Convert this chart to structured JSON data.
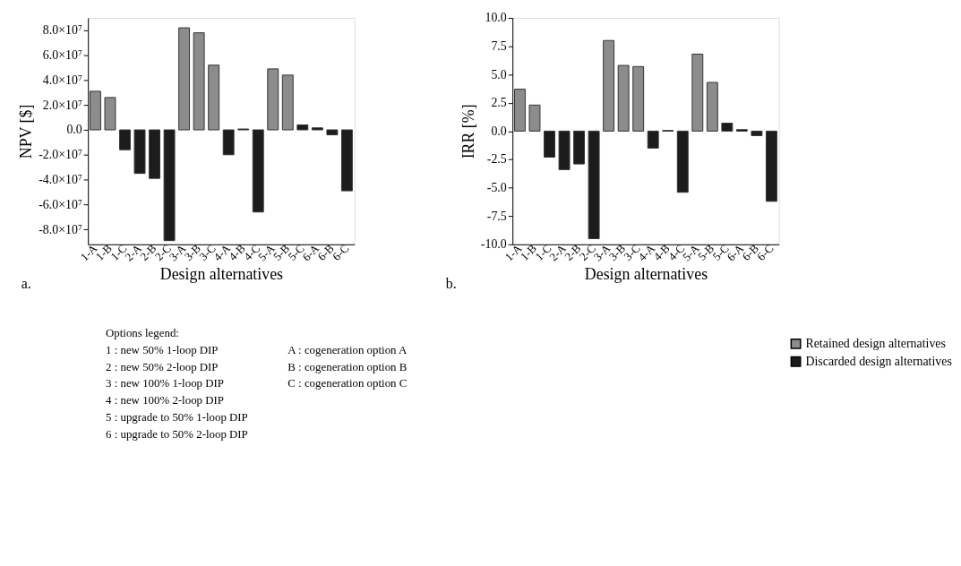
{
  "chart_data": [
    {
      "type": "bar",
      "xlabel": "Design alternatives",
      "ylabel": "NPV [$]",
      "categories": [
        "1-A",
        "1-B",
        "1-C",
        "2-A",
        "2-B",
        "2-C",
        "3-A",
        "3-B",
        "3-C",
        "4-A",
        "4-B",
        "4-C",
        "5-A",
        "5-B",
        "5-C",
        "6-A",
        "6-B",
        "6-C"
      ],
      "series": [
        {
          "name": "Retained design alternatives",
          "color": "#8c8c8c",
          "values": [
            31000000,
            26000000,
            null,
            null,
            null,
            null,
            82000000,
            78000000,
            52000000,
            null,
            null,
            null,
            49000000,
            44000000,
            null,
            null,
            null,
            null
          ]
        },
        {
          "name": "Discarded design alternatives",
          "color": "#1c1c1c",
          "values": [
            null,
            null,
            -16000000,
            -35000000,
            -39000000,
            -89000000,
            null,
            null,
            null,
            -20000000,
            700000,
            -66000000,
            null,
            null,
            4000000,
            1600000,
            -4000000,
            -49000000
          ]
        }
      ],
      "ylim": [
        -92000000,
        90000000
      ],
      "legend": "bottom right",
      "yticks": [
        {
          "value": -80000000,
          "label": "-8.0×10⁷"
        },
        {
          "value": -60000000,
          "label": "-6.0×10⁷"
        },
        {
          "value": -40000000,
          "label": "-4.0×10⁷"
        },
        {
          "value": -20000000,
          "label": "-2.0×10⁷"
        },
        {
          "value": 0,
          "label": "0.0"
        },
        {
          "value": 20000000,
          "label": "2.0×10⁷"
        },
        {
          "value": 40000000,
          "label": "4.0×10⁷"
        },
        {
          "value": 60000000,
          "label": "6.0×10⁷"
        },
        {
          "value": 80000000,
          "label": "8.0×10⁷"
        }
      ],
      "annotations": [
        "a.",
        "Options legend:",
        "1 : new 50% 1-loop DIP",
        "2 : new 50% 2-loop DIP",
        "3 : new 100% 1-loop DIP",
        "4 : new 100% 2-loop DIP",
        "5 : upgrade to 50% 1-loop DIP",
        "6 : upgrade to 50% 2-loop DIP",
        "A : cogeneration option A",
        "B : cogeneration option B",
        "C : cogeneration option C"
      ]
    },
    {
      "type": "bar",
      "xlabel": "Design alternatives",
      "ylabel": "IRR [%]",
      "categories": [
        "1-A",
        "1-B",
        "1-C",
        "2-A",
        "2-B",
        "2-C",
        "3-A",
        "3-B",
        "3-C",
        "4-A",
        "4-B",
        "4-C",
        "5-A",
        "5-B",
        "5-C",
        "6-A",
        "6-B",
        "6-C"
      ],
      "series": [
        {
          "color": "#8c8c8c",
          "values": [
            3.7,
            2.3,
            null,
            null,
            null,
            null,
            8.0,
            5.8,
            5.7,
            null,
            null,
            null,
            6.8,
            4.3,
            null,
            null,
            null,
            null
          ]
        },
        {
          "color": "#1c1c1c",
          "values": [
            null,
            null,
            -2.3,
            -3.4,
            -2.9,
            -9.5,
            null,
            null,
            null,
            -1.5,
            0.05,
            -5.4,
            null,
            null,
            0.7,
            0.13,
            -0.4,
            -6.2
          ]
        }
      ],
      "ylim": [
        -10,
        10
      ],
      "yticks": [
        {
          "value": -10,
          "label": "-10.0"
        },
        -7.5,
        {
          "value": -5,
          "label": "-5.0"
        },
        -2.5,
        {
          "value": 0,
          "label": "0.0"
        },
        2.5,
        {
          "value": 5,
          "label": "5.0"
        },
        7.5,
        {
          "value": 10,
          "label": "10.0"
        }
      ],
      "annotations": [
        "b."
      ]
    }
  ]
}
